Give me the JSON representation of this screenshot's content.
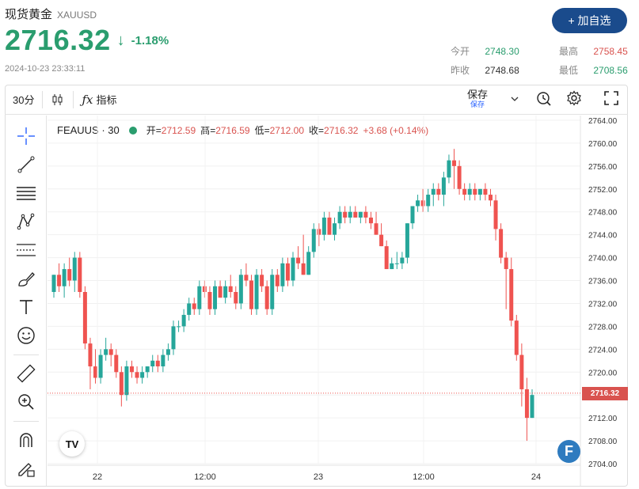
{
  "header": {
    "title": "现货黄金",
    "symbol": "XAUUSD",
    "price": "2716.32",
    "change_pct": "-1.18%",
    "timestamp": "2024-10-23 23:33:11",
    "add_button": "+ 加自选"
  },
  "stats": {
    "open_label": "今开",
    "open": "2748.30",
    "high_label": "最高",
    "high": "2758.45",
    "prev_label": "昨收",
    "prev": "2748.68",
    "low_label": "最低",
    "low": "2708.56"
  },
  "toolbar": {
    "interval": "30分",
    "indicators": "指标",
    "save": "保存",
    "save_sub": "保存"
  },
  "legend": {
    "name": "FEAUUS · 30",
    "open_label": "开",
    "open": "2712.59",
    "high_label": "高",
    "high": "2716.59",
    "low_label": "低",
    "low": "2712.00",
    "close_label": "收",
    "close": "2716.32",
    "change": "+3.68 (+0.14%)"
  },
  "colors": {
    "up": "#26a69a",
    "down": "#ef5350",
    "accent": "#1a4b8c"
  },
  "chart_data": {
    "type": "candlestick",
    "last_price": 2716.32,
    "last_price_label": "2716.32",
    "ylim": [
      2704,
      2764
    ],
    "y_ticks": [
      "2764.00",
      "2760.00",
      "2756.00",
      "2752.00",
      "2748.00",
      "2744.00",
      "2740.00",
      "2736.00",
      "2732.00",
      "2728.00",
      "2724.00",
      "2720.00",
      "2716.00",
      "2712.00",
      "2708.00",
      "2704.00"
    ],
    "x_ticks": [
      "22",
      "12:00",
      "23",
      "12:00",
      "24"
    ],
    "candles": [
      {
        "o": 2734,
        "h": 2737,
        "l": 2733,
        "c": 2737
      },
      {
        "o": 2737,
        "h": 2739,
        "l": 2734,
        "c": 2735
      },
      {
        "o": 2735,
        "h": 2739,
        "l": 2733,
        "c": 2738
      },
      {
        "o": 2738,
        "h": 2740,
        "l": 2735,
        "c": 2736
      },
      {
        "o": 2736,
        "h": 2741,
        "l": 2734,
        "c": 2740
      },
      {
        "o": 2740,
        "h": 2741,
        "l": 2733,
        "c": 2734
      },
      {
        "o": 2734,
        "h": 2735,
        "l": 2724,
        "c": 2725
      },
      {
        "o": 2725,
        "h": 2726,
        "l": 2717,
        "c": 2721
      },
      {
        "o": 2721,
        "h": 2724,
        "l": 2718,
        "c": 2719
      },
      {
        "o": 2719,
        "h": 2724,
        "l": 2718,
        "c": 2723
      },
      {
        "o": 2723,
        "h": 2726,
        "l": 2722,
        "c": 2724
      },
      {
        "o": 2724,
        "h": 2725,
        "l": 2721,
        "c": 2723
      },
      {
        "o": 2723,
        "h": 2724,
        "l": 2719,
        "c": 2720
      },
      {
        "o": 2720,
        "h": 2721,
        "l": 2714,
        "c": 2716
      },
      {
        "o": 2716,
        "h": 2722,
        "l": 2715,
        "c": 2721
      },
      {
        "o": 2721,
        "h": 2722,
        "l": 2719,
        "c": 2720
      },
      {
        "o": 2720,
        "h": 2721,
        "l": 2718,
        "c": 2719
      },
      {
        "o": 2719,
        "h": 2721,
        "l": 2718,
        "c": 2720
      },
      {
        "o": 2720,
        "h": 2721,
        "l": 2719,
        "c": 2721
      },
      {
        "o": 2721,
        "h": 2723,
        "l": 2720,
        "c": 2722
      },
      {
        "o": 2722,
        "h": 2723,
        "l": 2720,
        "c": 2721
      },
      {
        "o": 2721,
        "h": 2724,
        "l": 2720,
        "c": 2723
      },
      {
        "o": 2723,
        "h": 2725,
        "l": 2722,
        "c": 2724
      },
      {
        "o": 2724,
        "h": 2729,
        "l": 2723,
        "c": 2728
      },
      {
        "o": 2728,
        "h": 2729,
        "l": 2727,
        "c": 2728
      },
      {
        "o": 2728,
        "h": 2731,
        "l": 2727,
        "c": 2730
      },
      {
        "o": 2730,
        "h": 2733,
        "l": 2729,
        "c": 2732
      },
      {
        "o": 2732,
        "h": 2733,
        "l": 2730,
        "c": 2731
      },
      {
        "o": 2731,
        "h": 2736,
        "l": 2730,
        "c": 2735
      },
      {
        "o": 2735,
        "h": 2736,
        "l": 2733,
        "c": 2734
      },
      {
        "o": 2734,
        "h": 2735,
        "l": 2730,
        "c": 2731
      },
      {
        "o": 2731,
        "h": 2736,
        "l": 2730,
        "c": 2735
      },
      {
        "o": 2735,
        "h": 2736,
        "l": 2733,
        "c": 2733
      },
      {
        "o": 2733,
        "h": 2736,
        "l": 2732,
        "c": 2735
      },
      {
        "o": 2735,
        "h": 2737,
        "l": 2733,
        "c": 2734
      },
      {
        "o": 2734,
        "h": 2735,
        "l": 2731,
        "c": 2732
      },
      {
        "o": 2732,
        "h": 2738,
        "l": 2731,
        "c": 2737
      },
      {
        "o": 2737,
        "h": 2739,
        "l": 2735,
        "c": 2736
      },
      {
        "o": 2736,
        "h": 2737,
        "l": 2730,
        "c": 2731
      },
      {
        "o": 2731,
        "h": 2738,
        "l": 2730,
        "c": 2737
      },
      {
        "o": 2737,
        "h": 2738,
        "l": 2734,
        "c": 2735
      },
      {
        "o": 2735,
        "h": 2736,
        "l": 2730,
        "c": 2731
      },
      {
        "o": 2731,
        "h": 2738,
        "l": 2730,
        "c": 2737
      },
      {
        "o": 2737,
        "h": 2738,
        "l": 2734,
        "c": 2735
      },
      {
        "o": 2735,
        "h": 2740,
        "l": 2734,
        "c": 2739
      },
      {
        "o": 2739,
        "h": 2740,
        "l": 2735,
        "c": 2736
      },
      {
        "o": 2736,
        "h": 2741,
        "l": 2735,
        "c": 2740
      },
      {
        "o": 2740,
        "h": 2742,
        "l": 2738,
        "c": 2739
      },
      {
        "o": 2739,
        "h": 2744,
        "l": 2737,
        "c": 2737
      },
      {
        "o": 2737,
        "h": 2742,
        "l": 2737,
        "c": 2741
      },
      {
        "o": 2741,
        "h": 2746,
        "l": 2740,
        "c": 2745
      },
      {
        "o": 2745,
        "h": 2746,
        "l": 2742,
        "c": 2744
      },
      {
        "o": 2744,
        "h": 2748,
        "l": 2743,
        "c": 2747
      },
      {
        "o": 2747,
        "h": 2748,
        "l": 2744,
        "c": 2744
      },
      {
        "o": 2744,
        "h": 2747,
        "l": 2743,
        "c": 2746
      },
      {
        "o": 2746,
        "h": 2749,
        "l": 2745,
        "c": 2748
      },
      {
        "o": 2748,
        "h": 2749,
        "l": 2746,
        "c": 2747
      },
      {
        "o": 2747,
        "h": 2749,
        "l": 2746,
        "c": 2748
      },
      {
        "o": 2748,
        "h": 2749,
        "l": 2747,
        "c": 2747
      },
      {
        "o": 2747,
        "h": 2748,
        "l": 2746,
        "c": 2748
      },
      {
        "o": 2748,
        "h": 2749,
        "l": 2746,
        "c": 2747
      },
      {
        "o": 2747,
        "h": 2748,
        "l": 2745,
        "c": 2746
      },
      {
        "o": 2746,
        "h": 2748,
        "l": 2744,
        "c": 2744
      },
      {
        "o": 2744,
        "h": 2746,
        "l": 2742,
        "c": 2742
      },
      {
        "o": 2742,
        "h": 2743,
        "l": 2738,
        "c": 2738
      },
      {
        "o": 2738,
        "h": 2740,
        "l": 2738,
        "c": 2739
      },
      {
        "o": 2739,
        "h": 2741,
        "l": 2738,
        "c": 2739
      },
      {
        "o": 2739,
        "h": 2741,
        "l": 2738,
        "c": 2740
      },
      {
        "o": 2740,
        "h": 2746,
        "l": 2739,
        "c": 2746
      },
      {
        "o": 2746,
        "h": 2749,
        "l": 2745,
        "c": 2749
      },
      {
        "o": 2749,
        "h": 2751,
        "l": 2748,
        "c": 2750
      },
      {
        "o": 2750,
        "h": 2752,
        "l": 2748,
        "c": 2749
      },
      {
        "o": 2749,
        "h": 2752,
        "l": 2748,
        "c": 2751
      },
      {
        "o": 2751,
        "h": 2753,
        "l": 2749,
        "c": 2752
      },
      {
        "o": 2752,
        "h": 2753,
        "l": 2750,
        "c": 2751
      },
      {
        "o": 2751,
        "h": 2755,
        "l": 2749,
        "c": 2754
      },
      {
        "o": 2754,
        "h": 2758,
        "l": 2753,
        "c": 2757
      },
      {
        "o": 2757,
        "h": 2759,
        "l": 2752,
        "c": 2756
      },
      {
        "o": 2756,
        "h": 2757,
        "l": 2751,
        "c": 2752
      },
      {
        "o": 2752,
        "h": 2753,
        "l": 2750,
        "c": 2751
      },
      {
        "o": 2751,
        "h": 2753,
        "l": 2750,
        "c": 2752
      },
      {
        "o": 2752,
        "h": 2753,
        "l": 2750,
        "c": 2751
      },
      {
        "o": 2751,
        "h": 2752,
        "l": 2750,
        "c": 2752
      },
      {
        "o": 2752,
        "h": 2753,
        "l": 2750,
        "c": 2751
      },
      {
        "o": 2751,
        "h": 2752,
        "l": 2749,
        "c": 2750
      },
      {
        "o": 2750,
        "h": 2751,
        "l": 2743,
        "c": 2745
      },
      {
        "o": 2745,
        "h": 2746,
        "l": 2739,
        "c": 2740
      },
      {
        "o": 2740,
        "h": 2741,
        "l": 2731,
        "c": 2738
      },
      {
        "o": 2738,
        "h": 2740,
        "l": 2728,
        "c": 2729
      },
      {
        "o": 2729,
        "h": 2730,
        "l": 2722,
        "c": 2723
      },
      {
        "o": 2723,
        "h": 2725,
        "l": 2714,
        "c": 2717
      },
      {
        "o": 2717,
        "h": 2719,
        "l": 2708,
        "c": 2712
      },
      {
        "o": 2712,
        "h": 2717,
        "l": 2712,
        "c": 2716
      }
    ]
  }
}
